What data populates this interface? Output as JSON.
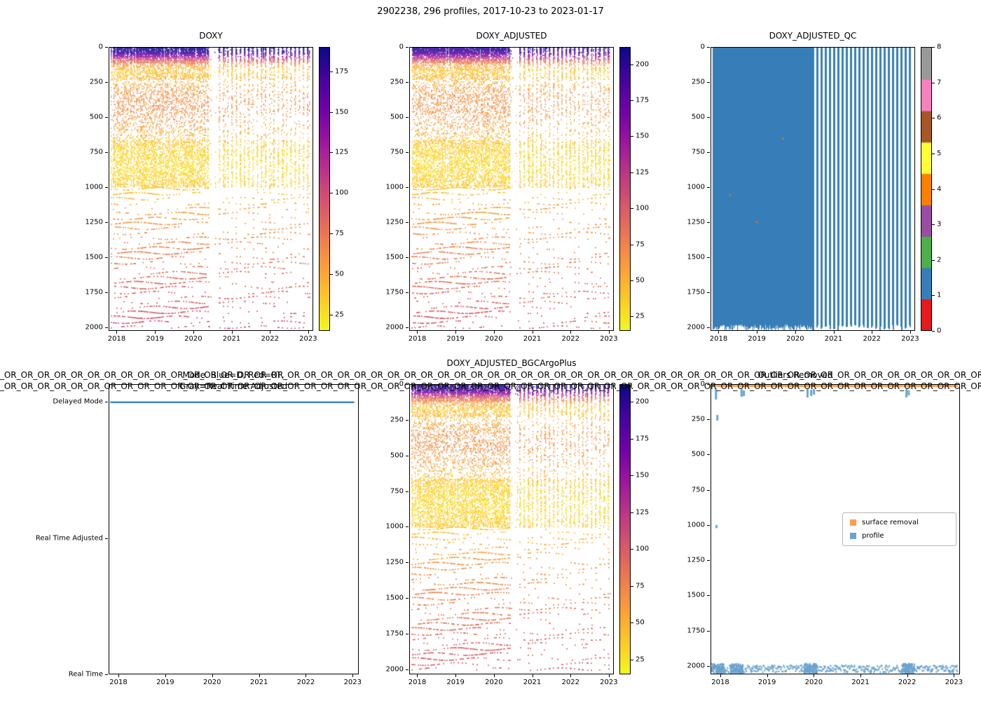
{
  "figure": {
    "title": "2902238, 296 profiles, 2017-10-23 to 2023-01-17"
  },
  "legend": {
    "surface_label": "surface removal",
    "profile_label": "profile"
  },
  "chart_data": [
    {
      "id": "doxy",
      "type": "scatter-heatmap",
      "title": "DOXY",
      "x": {
        "label": "time",
        "range": [
          2017.79,
          2023.13
        ],
        "ticks": [
          2018,
          2019,
          2020,
          2021,
          2022,
          2023
        ]
      },
      "y": {
        "label": "pressure",
        "range": [
          0,
          2025
        ],
        "ticks": [
          0,
          250,
          500,
          750,
          1000,
          1250,
          1500,
          1750,
          2000
        ],
        "inverted": true
      },
      "colorbar": {
        "cmap": "plasma_r",
        "vmin": 15,
        "vmax": 190,
        "ticks": [
          25,
          50,
          75,
          100,
          125,
          150,
          175
        ]
      },
      "profile_mean": {
        "depth": [
          0,
          25,
          55,
          90,
          130,
          170,
          240,
          320,
          430,
          560,
          700,
          860,
          1000,
          1120,
          1300,
          1500,
          1750,
          2000
        ],
        "value": [
          188,
          183,
          140,
          85,
          48,
          36,
          48,
          60,
          64,
          55,
          34,
          28,
          36,
          50,
          62,
          74,
          86,
          96
        ]
      },
      "data_start": 2017.81,
      "data_end": 2023.04,
      "sparse_after": 2020.45,
      "gap": [
        2020.42,
        2020.58
      ]
    },
    {
      "id": "doxy_adjusted",
      "type": "scatter-heatmap",
      "title": "DOXY_ADJUSTED",
      "x": {
        "label": "time",
        "range": [
          2017.79,
          2023.13
        ],
        "ticks": [
          2018,
          2019,
          2020,
          2021,
          2022,
          2023
        ]
      },
      "y": {
        "label": "pressure",
        "range": [
          0,
          2025
        ],
        "ticks": [
          0,
          250,
          500,
          750,
          1000,
          1250,
          1500,
          1750,
          2000
        ],
        "inverted": true
      },
      "colorbar": {
        "cmap": "plasma_r",
        "vmin": 15,
        "vmax": 212,
        "ticks": [
          25,
          50,
          75,
          100,
          125,
          150,
          175,
          200
        ]
      },
      "profile_mean": {
        "depth": [
          0,
          25,
          55,
          90,
          130,
          170,
          240,
          320,
          430,
          560,
          700,
          860,
          1000,
          1120,
          1300,
          1500,
          1750,
          2000
        ],
        "value": [
          201,
          196,
          150,
          91,
          51,
          39,
          51,
          64,
          68,
          59,
          36,
          30,
          39,
          54,
          66,
          79,
          92,
          103
        ]
      },
      "data_start": 2017.81,
      "data_end": 2023.05,
      "sparse_after": 2020.45,
      "gap": [
        2020.42,
        2020.58
      ]
    },
    {
      "id": "doxy_adjusted_qc",
      "type": "qc-heatmap",
      "title": "DOXY_ADJUSTED_QC",
      "x": {
        "label": "time",
        "range": [
          2017.79,
          2023.13
        ],
        "ticks": [
          2018,
          2019,
          2020,
          2021,
          2022,
          2023
        ]
      },
      "y": {
        "label": "pressure",
        "range": [
          0,
          2025
        ],
        "ticks": [
          0,
          250,
          500,
          750,
          1000,
          1250,
          1500,
          1750,
          2000
        ],
        "inverted": true
      },
      "colorbar": {
        "cmap": "Set1",
        "ticks": [
          0,
          1,
          2,
          3,
          4,
          5,
          6,
          7,
          8
        ],
        "colors": [
          "#e41a1c",
          "#377eb8",
          "#4daf4a",
          "#984ea3",
          "#ff7f00",
          "#ffff33",
          "#a65628",
          "#f781bf",
          "#999999"
        ]
      },
      "dominant_flag": 1,
      "flag_color": "#377eb8",
      "data_start": 2017.81,
      "data_end": 2023.05,
      "sparse_after": 2020.45
    },
    {
      "id": "mode",
      "type": "categorical-line",
      "title_line1": "Mode. Blue=D, Red=RT,",
      "title_line2": "Gray=Real Time Adjusted",
      "x": {
        "label": "time",
        "range": [
          2017.79,
          2023.13
        ],
        "ticks": [
          2018,
          2019,
          2020,
          2021,
          2022,
          2023
        ]
      },
      "y": {
        "categories": [
          "Delayed Mode",
          "Real Time Adjusted",
          "Real Time"
        ]
      },
      "series": [
        {
          "name": "mode",
          "value": "Delayed Mode",
          "color": "#1f77b4",
          "x_start": 2017.81,
          "x_end": 2023.05
        }
      ]
    },
    {
      "id": "doxy_adjusted_bgcargoplus",
      "type": "scatter-heatmap",
      "title": "DOXY_ADJUSTED_BGCArgoPlus",
      "x": {
        "label": "time",
        "range": [
          2017.79,
          2023.13
        ],
        "ticks": [
          2018,
          2019,
          2020,
          2021,
          2022,
          2023
        ]
      },
      "y": {
        "label": "pressure",
        "range": [
          0,
          2035
        ],
        "ticks": [
          0,
          250,
          500,
          750,
          1000,
          1250,
          1500,
          1750,
          2000
        ],
        "inverted": true
      },
      "colorbar": {
        "cmap": "plasma_r",
        "vmin": 15,
        "vmax": 212,
        "ticks": [
          25,
          50,
          75,
          100,
          125,
          150,
          175,
          200
        ]
      },
      "profile_mean": {
        "depth": [
          0,
          25,
          55,
          90,
          130,
          170,
          240,
          320,
          430,
          560,
          700,
          860,
          1000,
          1120,
          1300,
          1500,
          1750,
          2000
        ],
        "value": [
          201,
          196,
          150,
          91,
          51,
          39,
          51,
          64,
          68,
          59,
          36,
          30,
          39,
          54,
          66,
          79,
          92,
          103
        ]
      },
      "data_start": 2017.81,
      "data_end": 2023.05,
      "sparse_after": 2020.45,
      "gap": [
        2020.42,
        2020.58
      ]
    },
    {
      "id": "outliers_removed",
      "type": "outlier-scatter",
      "title": "Outliers Removed",
      "title_overflow": "OR_OR_OR_OR_OR_OR_OR_OR_OR_OR_OR_OR_OR_OR_OR_OR_OR_OR_OR_OR_OR_OR_OR_OR_OR_OR_OR_OR_OR_OR_OR_OR_OR_OR_OR_OR_OR_OR_OR_OR_OR_OR_OR_OR_OR_OR_OR_OR_OR_OR_OR_OR_OR_OR_OR_OR_OR_OR_OR_OR_OR_OR_OR_OR_OR_OR_OR_OR_OR_OR_OR_OR_OR_OR_OR_OR_OR_OR_OR_OR_OR_OR_OR_OR_OR_OR_OR_OR_OR_OR_OR_OR_OR_OR_OR_OR_OR_OR_OR_OR_OR_OR_OR_OR_OR_OR_OR_OR_OR_OR_OR_OR_OR_OR_OR_OR_OR_OR_OR_OR_OR_OR_OR_OR_OR_OR_OR_OR_OR_OR_OR_OR_OR_OR_OR_OR_OR_OR_OR_OR",
      "x": {
        "label": "time",
        "range": [
          2017.79,
          2023.13
        ],
        "ticks": [
          2018,
          2019,
          2020,
          2021,
          2022,
          2023
        ]
      },
      "y": {
        "label": "pressure",
        "range": [
          0,
          2060
        ],
        "ticks": [
          0,
          250,
          500,
          750,
          1000,
          1250,
          1500,
          1750,
          2000
        ],
        "inverted": true
      },
      "series": [
        {
          "name": "surface removal",
          "color": "#ff9f4a",
          "depth": 8,
          "x_start": 2017.81,
          "x_end": 2023.08
        },
        {
          "name": "profile",
          "color": "#6ba3cf",
          "depth_band": [
            1995,
            2045
          ],
          "x_start": 2017.81,
          "x_end": 2023.08
        }
      ],
      "profile_clusters": [
        2017.9,
        2018.3,
        2019.9,
        2022.0
      ],
      "outlier_segments": [
        [
          2017.87,
          25,
          105
        ],
        [
          2017.9,
          215,
          255
        ],
        [
          2017.88,
          1000,
          1022
        ],
        [
          2018.42,
          30,
          85
        ],
        [
          2018.47,
          40,
          80
        ],
        [
          2019.84,
          30,
          90
        ],
        [
          2019.92,
          35,
          80
        ],
        [
          2019.98,
          30,
          70
        ],
        [
          2021.97,
          30,
          90
        ],
        [
          2022.02,
          40,
          75
        ]
      ]
    }
  ]
}
